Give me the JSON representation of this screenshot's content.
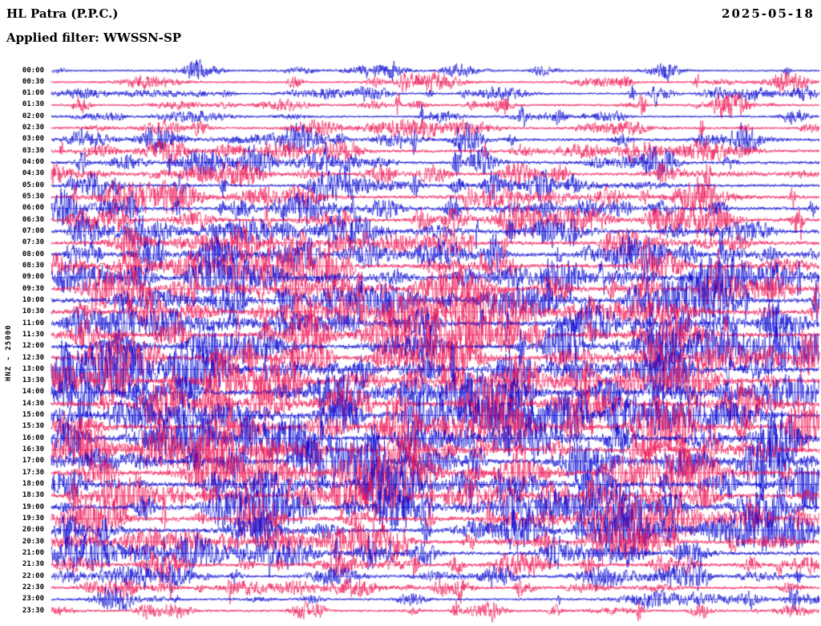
{
  "header": {
    "station_title": "HL Patra (P.P.C.)",
    "date": "2025-05-18",
    "filter_label": "Applied filter: WWSSN-SP"
  },
  "y_axis": {
    "label": "HNZ - 25000"
  },
  "chart_data": {
    "type": "line",
    "subtype": "helicorder-seismogram-24h",
    "title": "HL Patra (P.P.C.)",
    "date": "2025-05-18",
    "filter": "WWSSN-SP",
    "channel_scale_label": "HNZ - 25000",
    "row_duration_minutes": 30,
    "x_range_minutes": [
      0,
      30
    ],
    "grid": false,
    "legend": false,
    "trace_colors": {
      "blue": "#0000d0",
      "red": "#ee1150"
    },
    "note": "Continuous seismic waveform drum plot; 48 half-hour rows alternating blue/red. Individual sample values are not resolvable at screenshot scale; relative_amplitude is the estimated per-row activity envelope read from the image.",
    "rows": [
      {
        "time": "00:00",
        "color": "blue",
        "relative_amplitude": 0.7
      },
      {
        "time": "00:30",
        "color": "red",
        "relative_amplitude": 0.7
      },
      {
        "time": "01:00",
        "color": "blue",
        "relative_amplitude": 0.7
      },
      {
        "time": "01:30",
        "color": "red",
        "relative_amplitude": 0.8
      },
      {
        "time": "02:00",
        "color": "blue",
        "relative_amplitude": 0.7
      },
      {
        "time": "02:30",
        "color": "red",
        "relative_amplitude": 0.8
      },
      {
        "time": "03:00",
        "color": "blue",
        "relative_amplitude": 1.0
      },
      {
        "time": "03:30",
        "color": "red",
        "relative_amplitude": 1.0
      },
      {
        "time": "04:00",
        "color": "blue",
        "relative_amplitude": 1.1
      },
      {
        "time": "04:30",
        "color": "red",
        "relative_amplitude": 1.0
      },
      {
        "time": "05:00",
        "color": "blue",
        "relative_amplitude": 1.0
      },
      {
        "time": "05:30",
        "color": "red",
        "relative_amplitude": 1.1
      },
      {
        "time": "06:00",
        "color": "blue",
        "relative_amplitude": 1.2
      },
      {
        "time": "06:30",
        "color": "red",
        "relative_amplitude": 1.2
      },
      {
        "time": "07:00",
        "color": "blue",
        "relative_amplitude": 1.3
      },
      {
        "time": "07:30",
        "color": "red",
        "relative_amplitude": 1.3
      },
      {
        "time": "08:00",
        "color": "blue",
        "relative_amplitude": 1.4
      },
      {
        "time": "08:30",
        "color": "red",
        "relative_amplitude": 1.4
      },
      {
        "time": "09:00",
        "color": "blue",
        "relative_amplitude": 1.5
      },
      {
        "time": "09:30",
        "color": "red",
        "relative_amplitude": 1.5
      },
      {
        "time": "10:00",
        "color": "blue",
        "relative_amplitude": 1.6
      },
      {
        "time": "10:30",
        "color": "red",
        "relative_amplitude": 1.6
      },
      {
        "time": "11:00",
        "color": "blue",
        "relative_amplitude": 1.6
      },
      {
        "time": "11:30",
        "color": "red",
        "relative_amplitude": 1.6
      },
      {
        "time": "12:00",
        "color": "blue",
        "relative_amplitude": 1.6
      },
      {
        "time": "12:30",
        "color": "red",
        "relative_amplitude": 1.6
      },
      {
        "time": "13:00",
        "color": "blue",
        "relative_amplitude": 1.7
      },
      {
        "time": "13:30",
        "color": "red",
        "relative_amplitude": 1.7
      },
      {
        "time": "14:00",
        "color": "blue",
        "relative_amplitude": 1.7
      },
      {
        "time": "14:30",
        "color": "red",
        "relative_amplitude": 1.7
      },
      {
        "time": "15:00",
        "color": "blue",
        "relative_amplitude": 1.7
      },
      {
        "time": "15:30",
        "color": "red",
        "relative_amplitude": 1.7
      },
      {
        "time": "16:00",
        "color": "blue",
        "relative_amplitude": 1.7
      },
      {
        "time": "16:30",
        "color": "red",
        "relative_amplitude": 1.7
      },
      {
        "time": "17:00",
        "color": "blue",
        "relative_amplitude": 1.7
      },
      {
        "time": "17:30",
        "color": "red",
        "relative_amplitude": 1.7
      },
      {
        "time": "18:00",
        "color": "blue",
        "relative_amplitude": 1.6
      },
      {
        "time": "18:30",
        "color": "red",
        "relative_amplitude": 1.6
      },
      {
        "time": "19:00",
        "color": "blue",
        "relative_amplitude": 1.6
      },
      {
        "time": "19:30",
        "color": "red",
        "relative_amplitude": 1.5
      },
      {
        "time": "20:00",
        "color": "blue",
        "relative_amplitude": 1.4
      },
      {
        "time": "20:30",
        "color": "red",
        "relative_amplitude": 1.3
      },
      {
        "time": "21:00",
        "color": "blue",
        "relative_amplitude": 1.2
      },
      {
        "time": "21:30",
        "color": "red",
        "relative_amplitude": 1.1
      },
      {
        "time": "22:00",
        "color": "blue",
        "relative_amplitude": 1.0
      },
      {
        "time": "22:30",
        "color": "red",
        "relative_amplitude": 0.9
      },
      {
        "time": "23:00",
        "color": "blue",
        "relative_amplitude": 0.8
      },
      {
        "time": "23:30",
        "color": "red",
        "relative_amplitude": 0.8
      }
    ]
  }
}
